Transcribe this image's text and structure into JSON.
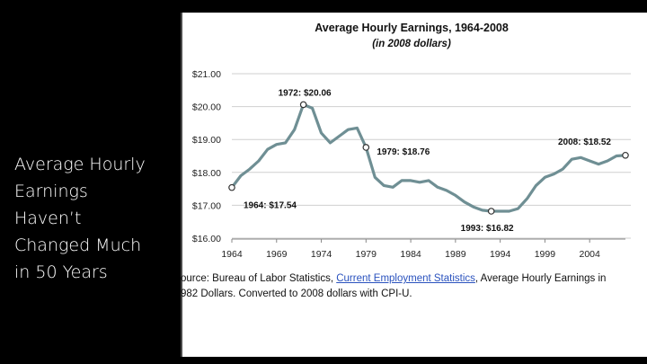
{
  "slide": {
    "title_lines": [
      "Average Hourly",
      "Earnings",
      "Haven’t",
      "Changed Much",
      "in 50 Years"
    ]
  },
  "chart_data": {
    "type": "line",
    "title": "Average Hourly Earnings, 1964-2008",
    "subtitle": "(in 2008 dollars)",
    "xlabel": "",
    "ylabel": "",
    "xlim": [
      1964,
      2008
    ],
    "ylim": [
      16.0,
      21.0
    ],
    "x_ticks": [
      "1964",
      "1969",
      "1974",
      "1979",
      "1984",
      "1989",
      "1994",
      "1999",
      "2004"
    ],
    "y_ticks": [
      "$21.00",
      "$20.00",
      "$19.00",
      "$18.00",
      "$17.00",
      "$16.00"
    ],
    "grid": true,
    "line_color": "#6f8f94",
    "x": [
      1964,
      1965,
      1966,
      1967,
      1968,
      1969,
      1970,
      1971,
      1972,
      1973,
      1974,
      1975,
      1976,
      1977,
      1978,
      1979,
      1980,
      1981,
      1982,
      1983,
      1984,
      1985,
      1986,
      1987,
      1988,
      1989,
      1990,
      1991,
      1992,
      1993,
      1994,
      1995,
      1996,
      1997,
      1998,
      1999,
      2000,
      2001,
      2002,
      2003,
      2004,
      2005,
      2006,
      2007,
      2008
    ],
    "values": [
      17.54,
      17.9,
      18.1,
      18.35,
      18.7,
      18.85,
      18.9,
      19.3,
      20.06,
      19.95,
      19.2,
      18.9,
      19.1,
      19.3,
      19.35,
      18.76,
      17.85,
      17.6,
      17.55,
      17.75,
      17.75,
      17.7,
      17.75,
      17.55,
      17.45,
      17.3,
      17.1,
      16.95,
      16.85,
      16.82,
      16.82,
      16.82,
      16.9,
      17.2,
      17.6,
      17.85,
      17.95,
      18.1,
      18.4,
      18.45,
      18.35,
      18.25,
      18.35,
      18.5,
      18.52
    ],
    "annotations": [
      {
        "label": "1964: $17.54",
        "x": 1964,
        "y": 17.54
      },
      {
        "label": "1972: $20.06",
        "x": 1972,
        "y": 20.06
      },
      {
        "label": "1979: $18.76",
        "x": 1979,
        "y": 18.76
      },
      {
        "label": "1993: $16.82",
        "x": 1993,
        "y": 16.82
      },
      {
        "label": "2008: $18.52",
        "x": 2008,
        "y": 18.52
      }
    ]
  },
  "source": {
    "line1_prefix": "ource: Bureau of Labor Statistics, ",
    "line1_link": "Current Employment Statistics",
    "line1_suffix": ", Average Hourly Earnings in",
    "line2": "982 Dollars. Converted to 2008 dollars with CPI-U."
  }
}
